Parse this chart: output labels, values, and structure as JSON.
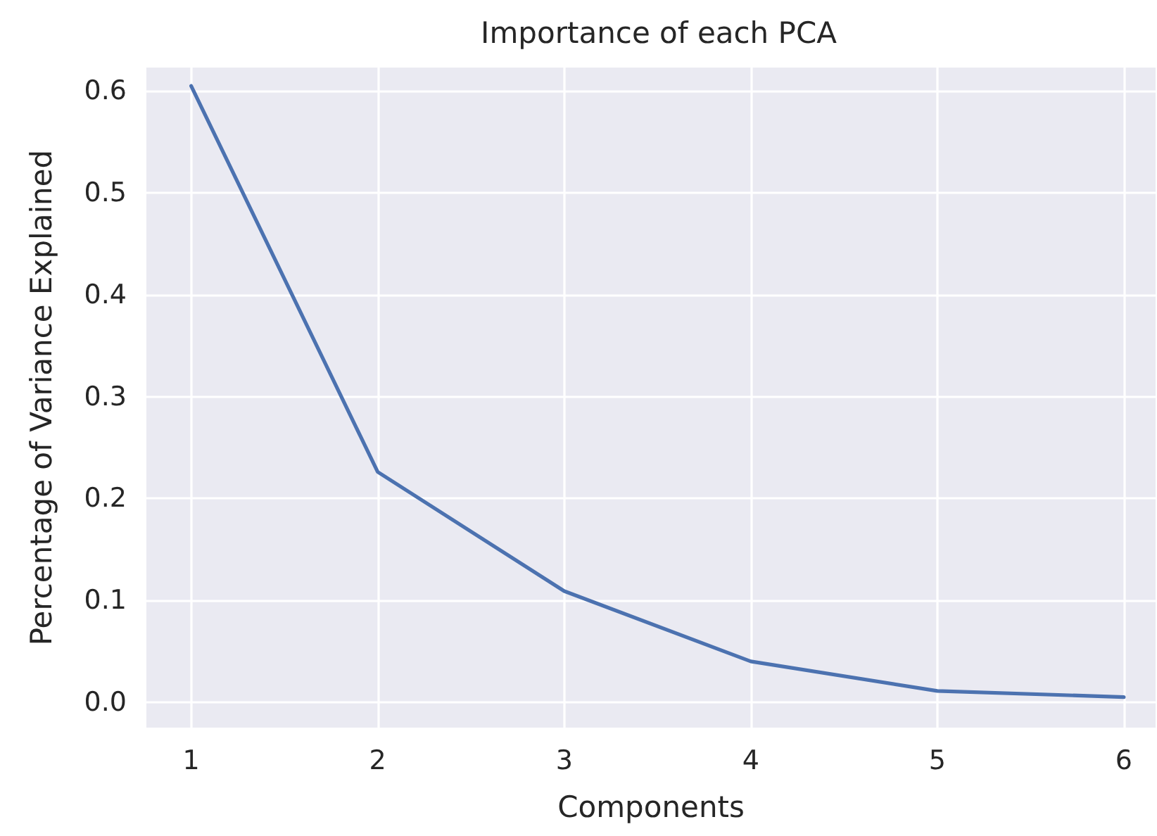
{
  "chart_data": {
    "type": "line",
    "title": "Importance of each PCA",
    "xlabel": "Components",
    "ylabel": "Percentage of Variance Explained",
    "x": [
      1,
      2,
      3,
      4,
      5,
      6
    ],
    "series": [
      {
        "color": "#4c72b0",
        "values": [
          0.605,
          0.226,
          0.109,
          0.04,
          0.011,
          0.005
        ]
      }
    ],
    "xlim": [
      0.76,
      6.17
    ],
    "xticks": [
      1,
      2,
      3,
      4,
      5,
      6
    ],
    "ylim": [
      -0.025,
      0.623
    ],
    "yticks": [
      {
        "value": 0,
        "label": "0.0"
      },
      {
        "value": 0.1,
        "label": "0.1"
      },
      {
        "value": 0.2,
        "label": "0.2"
      },
      {
        "value": 0.3,
        "label": "0.3"
      },
      {
        "value": 0.4,
        "label": "0.4"
      },
      {
        "value": 0.5,
        "label": "0.5"
      },
      {
        "value": 0.6,
        "label": "0.6"
      }
    ],
    "grid": true,
    "marker": "none",
    "line_style": "solid"
  }
}
